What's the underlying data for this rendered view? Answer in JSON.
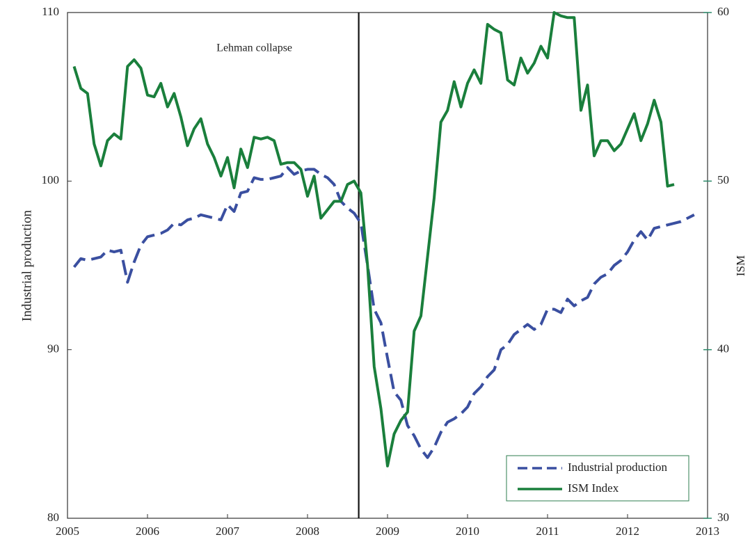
{
  "chart_data": {
    "type": "line",
    "x": [
      2005.083,
      2005.167,
      2005.25,
      2005.333,
      2005.417,
      2005.5,
      2005.583,
      2005.667,
      2005.75,
      2005.833,
      2005.917,
      2006,
      2006.083,
      2006.167,
      2006.25,
      2006.333,
      2006.417,
      2006.5,
      2006.583,
      2006.667,
      2006.75,
      2006.833,
      2006.917,
      2007,
      2007.083,
      2007.167,
      2007.25,
      2007.333,
      2007.417,
      2007.5,
      2007.583,
      2007.667,
      2007.75,
      2007.833,
      2007.917,
      2008,
      2008.083,
      2008.167,
      2008.25,
      2008.333,
      2008.417,
      2008.5,
      2008.583,
      2008.667,
      2008.75,
      2008.833,
      2008.917,
      2009,
      2009.083,
      2009.167,
      2009.25,
      2009.333,
      2009.417,
      2009.5,
      2009.583,
      2009.667,
      2009.75,
      2009.833,
      2009.917,
      2010,
      2010.083,
      2010.167,
      2010.25,
      2010.333,
      2010.417,
      2010.5,
      2010.583,
      2010.667,
      2010.75,
      2010.833,
      2010.917,
      2011,
      2011.083,
      2011.167,
      2011.25,
      2011.333,
      2011.417,
      2011.5,
      2011.583,
      2011.667,
      2011.75,
      2011.833,
      2011.917,
      2012,
      2012.083,
      2012.167,
      2012.25,
      2012.333,
      2012.417,
      2012.5,
      2012.583,
      2012.667,
      2012.75,
      2012.833
    ],
    "series": [
      {
        "name": "Industrial production",
        "color": "#3a4fa0",
        "dash": true,
        "axis": "y",
        "values": [
          94.9,
          95.4,
          95.3,
          95.4,
          95.5,
          95.9,
          95.8,
          95.9,
          94.0,
          95.2,
          96.2,
          96.7,
          96.8,
          96.9,
          97.1,
          97.5,
          97.4,
          97.7,
          97.8,
          98.0,
          97.9,
          97.8,
          97.7,
          98.6,
          98.2,
          99.3,
          99.4,
          100.2,
          100.1,
          100.1,
          100.2,
          100.3,
          100.8,
          100.4,
          100.6,
          100.7,
          100.7,
          100.4,
          100.2,
          99.8,
          98.8,
          98.4,
          98.1,
          97.5,
          95.0,
          92.4,
          91.6,
          89.5,
          87.5,
          87.0,
          85.5,
          84.9,
          84.1,
          83.6,
          84.2,
          85.1,
          85.7,
          85.9,
          86.2,
          86.6,
          87.4,
          87.8,
          88.4,
          88.8,
          90.0,
          90.3,
          90.9,
          91.2,
          91.5,
          91.2,
          91.5,
          92.4,
          92.4,
          92.2,
          93.0,
          92.6,
          92.9,
          93.1,
          93.9,
          94.3,
          94.5,
          95.0,
          95.3,
          95.8,
          96.5,
          97.0,
          96.5,
          97.2,
          97.3,
          97.4,
          97.5,
          97.6,
          97.8,
          98.0
        ]
      },
      {
        "name": "ISM Index",
        "color": "#1a7f3c",
        "dash": false,
        "axis": "y2",
        "values": [
          56.8,
          55.5,
          55.2,
          52.2,
          50.9,
          52.4,
          52.8,
          52.5,
          56.8,
          57.2,
          56.7,
          55.1,
          55.0,
          55.8,
          54.4,
          55.2,
          53.8,
          52.1,
          53.1,
          53.7,
          52.2,
          51.4,
          50.3,
          51.4,
          49.6,
          51.9,
          50.8,
          52.6,
          52.5,
          52.6,
          52.4,
          51.0,
          51.1,
          51.1,
          50.7,
          49.1,
          50.3,
          47.8,
          48.3,
          48.8,
          48.8,
          49.8,
          50.0,
          49.3,
          45.0,
          39.0,
          36.5,
          33.1,
          35.0,
          35.8,
          36.3,
          41.1,
          42.0,
          45.5,
          49.0,
          53.5,
          54.2,
          55.9,
          54.4,
          55.8,
          56.6,
          55.8,
          59.3,
          59.0,
          58.8,
          56.0,
          55.7,
          57.3,
          56.4,
          57.0,
          58.0,
          57.3,
          60.0,
          59.8,
          59.7,
          59.7,
          54.2,
          55.7,
          51.5,
          52.4,
          52.4,
          51.8,
          52.2,
          53.1,
          54.0,
          52.4,
          53.4,
          54.8,
          53.5,
          49.7,
          49.8,
          null,
          null,
          null
        ]
      }
    ],
    "ylabel": "Industrial production",
    "y2label": "ISM",
    "xlim": [
      2005,
      2013
    ],
    "xticks": [
      2005,
      2006,
      2007,
      2008,
      2009,
      2010,
      2011,
      2012,
      2013
    ],
    "ylim": [
      80,
      110
    ],
    "yticks": [
      80,
      90,
      100,
      110
    ],
    "y2lim": [
      30,
      60
    ],
    "y2ticks": [
      30,
      40,
      50,
      60
    ],
    "event": {
      "label": "Lehman collapse",
      "x": 2008.64
    },
    "legend": "lower right"
  }
}
